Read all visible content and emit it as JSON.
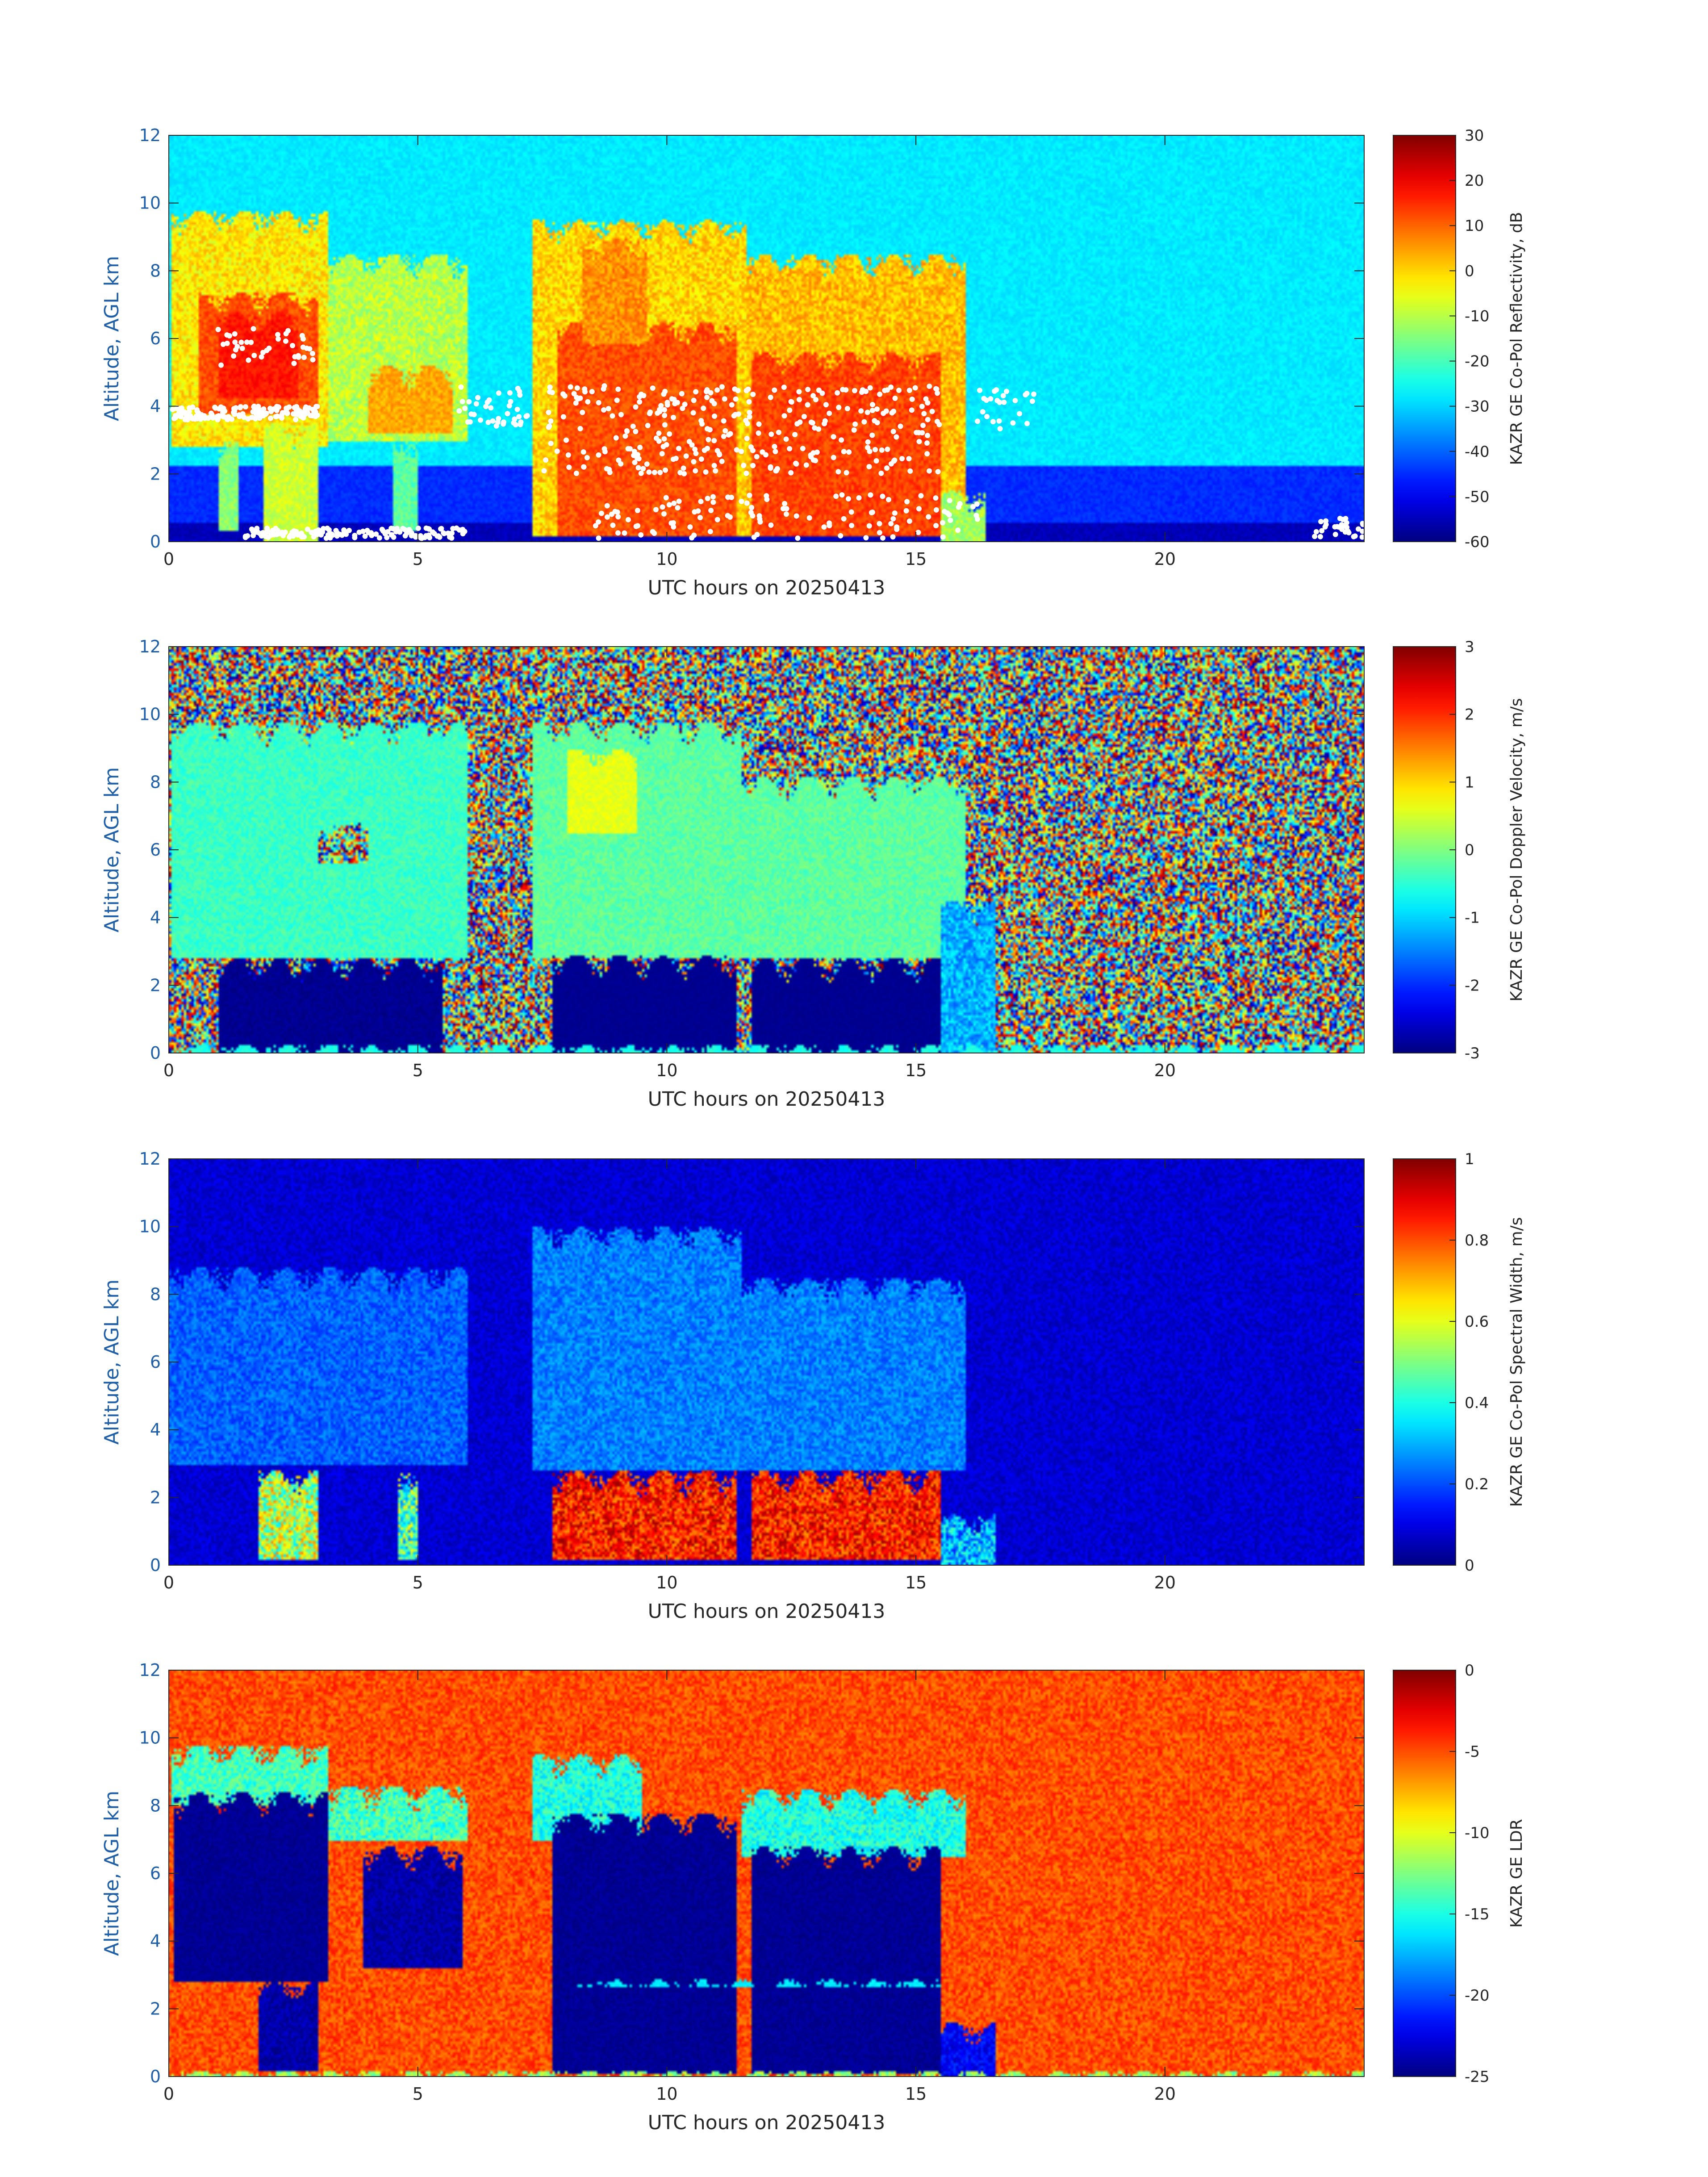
{
  "chart_data": [
    {
      "type": "heatmap",
      "xlabel": "UTC hours on 20250413",
      "ylabel": "Altitude, AGL km",
      "xlim": [
        0,
        24
      ],
      "ylim": [
        0,
        12
      ],
      "x_ticks": [
        "0",
        "5",
        "10",
        "15",
        "20"
      ],
      "y_ticks": [
        "0",
        "2",
        "4",
        "6",
        "8",
        "10",
        "12"
      ],
      "colorbar": {
        "label": "KAZR GE Co-Pol Reflectivity, dB",
        "range": [
          -60,
          30
        ],
        "ticks": [
          "-60",
          "-50",
          "-40",
          "-30",
          "-20",
          "-10",
          "0",
          "10",
          "20",
          "30"
        ]
      },
      "background_value": -28,
      "noise_amplitude": 4,
      "bands": [
        {
          "x0": 0,
          "x1": 24,
          "y0": 0,
          "y1": 2.2,
          "v": -45
        },
        {
          "x0": 0,
          "x1": 24,
          "y0": 0,
          "y1": 0.6,
          "v": -55
        }
      ],
      "features": [
        {
          "x0": 0.05,
          "x1": 3.2,
          "y0": 2.8,
          "y1": 9.8,
          "v": -2,
          "n": 12
        },
        {
          "x0": 0.6,
          "x1": 3.0,
          "y0": 3.8,
          "y1": 7.4,
          "v": 12,
          "n": 8
        },
        {
          "x0": 1.0,
          "x1": 2.6,
          "y0": 4.2,
          "y1": 6.8,
          "v": 17,
          "n": 6
        },
        {
          "x0": 1.9,
          "x1": 3.0,
          "y0": 0.0,
          "y1": 3.5,
          "v": -8,
          "n": 8
        },
        {
          "x0": 1.0,
          "x1": 1.4,
          "y0": 0.3,
          "y1": 3.0,
          "v": -14,
          "n": 8
        },
        {
          "x0": 3.2,
          "x1": 6.0,
          "y0": 3.0,
          "y1": 8.5,
          "v": -10,
          "n": 12
        },
        {
          "x0": 4.0,
          "x1": 5.7,
          "y0": 3.2,
          "y1": 5.2,
          "v": 4,
          "n": 8
        },
        {
          "x0": 4.5,
          "x1": 5.0,
          "y0": 0.3,
          "y1": 3.0,
          "v": -18,
          "n": 8
        },
        {
          "x0": 7.3,
          "x1": 11.6,
          "y0": 0.2,
          "y1": 9.5,
          "v": 0,
          "n": 12
        },
        {
          "x0": 7.8,
          "x1": 11.4,
          "y0": 0.2,
          "y1": 6.5,
          "v": 12,
          "n": 8
        },
        {
          "x0": 8.3,
          "x1": 9.6,
          "y0": 5.8,
          "y1": 9.0,
          "v": 6,
          "n": 10
        },
        {
          "x0": 11.6,
          "x1": 16.0,
          "y0": 0.2,
          "y1": 8.5,
          "v": 2,
          "n": 12
        },
        {
          "x0": 11.7,
          "x1": 15.5,
          "y0": 0.2,
          "y1": 5.6,
          "v": 13,
          "n": 8
        },
        {
          "x0": 15.5,
          "x1": 16.4,
          "y0": 0.0,
          "y1": 1.5,
          "v": -12,
          "n": 10
        }
      ],
      "dots": [
        {
          "x0": 0.0,
          "x1": 3.0,
          "y0": 3.6,
          "y1": 4.0,
          "count": 160
        },
        {
          "x0": 0.9,
          "x1": 3.0,
          "y0": 5.2,
          "y1": 6.3,
          "count": 40
        },
        {
          "x0": 1.5,
          "x1": 6.0,
          "y0": 0.1,
          "y1": 0.4,
          "count": 140
        },
        {
          "x0": 5.8,
          "x1": 7.2,
          "y0": 3.4,
          "y1": 4.6,
          "count": 40
        },
        {
          "x0": 7.5,
          "x1": 15.5,
          "y0": 2.0,
          "y1": 4.6,
          "count": 320
        },
        {
          "x0": 8.5,
          "x1": 16.5,
          "y0": 0.1,
          "y1": 1.4,
          "count": 120
        },
        {
          "x0": 16.2,
          "x1": 17.4,
          "y0": 3.2,
          "y1": 4.5,
          "count": 25
        },
        {
          "x0": 23.0,
          "x1": 24.0,
          "y0": 0.1,
          "y1": 0.7,
          "count": 30
        }
      ]
    },
    {
      "type": "heatmap",
      "xlabel": "UTC hours on 20250413",
      "ylabel": "Altitude, AGL km",
      "xlim": [
        0,
        24
      ],
      "ylim": [
        0,
        12
      ],
      "x_ticks": [
        "0",
        "5",
        "10",
        "15",
        "20"
      ],
      "y_ticks": [
        "0",
        "2",
        "4",
        "6",
        "8",
        "10",
        "12"
      ],
      "colorbar": {
        "label": "KAZR GE Co-Pol Doppler Velocity, m/s",
        "range": [
          -3,
          3
        ],
        "ticks": [
          "-3",
          "-2",
          "-1",
          "0",
          "1",
          "2",
          "3"
        ]
      },
      "background_value": 0,
      "noise_amplitude": 6,
      "bands": [],
      "features": [
        {
          "x0": 0.05,
          "x1": 6.0,
          "y0": 2.8,
          "y1": 9.8,
          "v": -0.4,
          "n": 0.5
        },
        {
          "x0": 3.0,
          "x1": 4.0,
          "y0": 5.6,
          "y1": 6.8,
          "v": 0.0,
          "n": 6
        },
        {
          "x0": 1.0,
          "x1": 5.5,
          "y0": 0.0,
          "y1": 2.8,
          "v": -2.9,
          "n": 0.2
        },
        {
          "x0": 7.3,
          "x1": 11.5,
          "y0": 2.8,
          "y1": 9.8,
          "v": -0.2,
          "n": 0.5
        },
        {
          "x0": 8.0,
          "x1": 9.4,
          "y0": 6.5,
          "y1": 9.0,
          "v": 0.6,
          "n": 0.3
        },
        {
          "x0": 7.7,
          "x1": 11.4,
          "y0": 0.0,
          "y1": 2.9,
          "v": -2.9,
          "n": 0.1
        },
        {
          "x0": 11.5,
          "x1": 16.0,
          "y0": 2.8,
          "y1": 8.2,
          "v": -0.2,
          "n": 0.5
        },
        {
          "x0": 11.7,
          "x1": 15.5,
          "y0": 0.0,
          "y1": 2.8,
          "v": -2.9,
          "n": 0.1
        },
        {
          "x0": 15.5,
          "x1": 16.6,
          "y0": 0.0,
          "y1": 4.5,
          "v": -1.2,
          "n": 1.0
        },
        {
          "x0": 0.0,
          "x1": 24.0,
          "y0": 0.0,
          "y1": 0.25,
          "v": -0.6,
          "n": 0.3
        }
      ],
      "dots": []
    },
    {
      "type": "heatmap",
      "xlabel": "UTC hours on 20250413",
      "ylabel": "Altitude, AGL km",
      "xlim": [
        0,
        24
      ],
      "ylim": [
        0,
        12
      ],
      "x_ticks": [
        "0",
        "5",
        "10",
        "15",
        "20"
      ],
      "y_ticks": [
        "0",
        "2",
        "4",
        "6",
        "8",
        "10",
        "12"
      ],
      "colorbar": {
        "label": "KAZR GE Co-Pol Spectral Width, m/s",
        "range": [
          0,
          1
        ],
        "ticks": [
          "0",
          "0.2",
          "0.4",
          "0.6",
          "0.8",
          "1"
        ]
      },
      "background_value": 0.08,
      "noise_amplitude": 0.08,
      "bands": [],
      "features": [
        {
          "x0": 0.0,
          "x1": 6.0,
          "y0": 3.0,
          "y1": 8.8,
          "v": 0.22,
          "n": 0.12
        },
        {
          "x0": 1.8,
          "x1": 3.0,
          "y0": 0.2,
          "y1": 2.8,
          "v": 0.55,
          "n": 0.4
        },
        {
          "x0": 4.6,
          "x1": 5.0,
          "y0": 0.2,
          "y1": 2.8,
          "v": 0.45,
          "n": 0.4
        },
        {
          "x0": 7.3,
          "x1": 11.5,
          "y0": 2.8,
          "y1": 10.0,
          "v": 0.25,
          "n": 0.12
        },
        {
          "x0": 7.7,
          "x1": 11.4,
          "y0": 0.2,
          "y1": 2.8,
          "v": 0.85,
          "n": 0.25
        },
        {
          "x0": 11.5,
          "x1": 16.0,
          "y0": 2.8,
          "y1": 8.5,
          "v": 0.25,
          "n": 0.12
        },
        {
          "x0": 11.7,
          "x1": 15.5,
          "y0": 0.2,
          "y1": 2.8,
          "v": 0.85,
          "n": 0.25
        },
        {
          "x0": 15.5,
          "x1": 16.6,
          "y0": 0.0,
          "y1": 1.5,
          "v": 0.3,
          "n": 0.3
        }
      ],
      "dots": []
    },
    {
      "type": "heatmap",
      "xlabel": "UTC hours on 20250413",
      "ylabel": "Altitude, AGL km",
      "xlim": [
        0,
        24
      ],
      "ylim": [
        0,
        12
      ],
      "x_ticks": [
        "0",
        "5",
        "10",
        "15",
        "20"
      ],
      "y_ticks": [
        "0",
        "2",
        "4",
        "6",
        "8",
        "10",
        "12"
      ],
      "colorbar": {
        "label": "KAZR GE LDR",
        "range": [
          -25,
          0
        ],
        "ticks": [
          "-25",
          "-20",
          "-15",
          "-10",
          "-5",
          "0"
        ]
      },
      "background_value": -5,
      "noise_amplitude": 3,
      "bands": [],
      "features": [
        {
          "x0": 0.05,
          "x1": 3.2,
          "y0": 8.0,
          "y1": 9.8,
          "v": -14,
          "n": 4
        },
        {
          "x0": 0.1,
          "x1": 3.2,
          "y0": 2.8,
          "y1": 8.4,
          "v": -24.5,
          "n": 1
        },
        {
          "x0": 1.8,
          "x1": 3.0,
          "y0": 0.2,
          "y1": 2.8,
          "v": -24,
          "n": 2
        },
        {
          "x0": 3.2,
          "x1": 6.0,
          "y0": 7.0,
          "y1": 8.6,
          "v": -14,
          "n": 5
        },
        {
          "x0": 3.9,
          "x1": 5.9,
          "y0": 3.2,
          "y1": 6.8,
          "v": -24,
          "n": 2
        },
        {
          "x0": 7.3,
          "x1": 9.5,
          "y0": 7.0,
          "y1": 9.5,
          "v": -15,
          "n": 4
        },
        {
          "x0": 7.7,
          "x1": 11.4,
          "y0": 0.1,
          "y1": 7.8,
          "v": -24.5,
          "n": 1
        },
        {
          "x0": 11.5,
          "x1": 16.0,
          "y0": 6.5,
          "y1": 8.5,
          "v": -15,
          "n": 4
        },
        {
          "x0": 11.7,
          "x1": 15.5,
          "y0": 0.1,
          "y1": 6.8,
          "v": -24.5,
          "n": 1
        },
        {
          "x0": 8.2,
          "x1": 15.5,
          "y0": 2.65,
          "y1": 2.85,
          "v": -16,
          "n": 1
        },
        {
          "x0": 15.5,
          "x1": 16.6,
          "y0": 0.0,
          "y1": 1.6,
          "v": -22,
          "n": 3
        },
        {
          "x0": 0.0,
          "x1": 24.0,
          "y0": 0.0,
          "y1": 0.2,
          "v": -12,
          "n": 4
        }
      ],
      "dots": []
    }
  ]
}
